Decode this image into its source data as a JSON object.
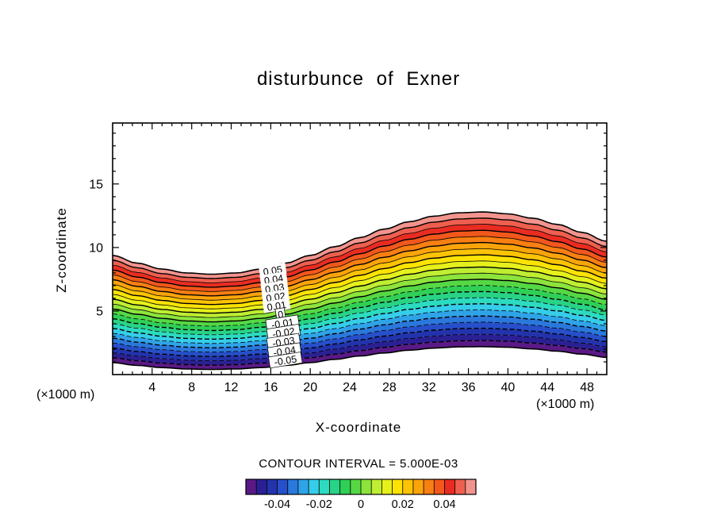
{
  "title": "disturbunce of Exner",
  "axes": {
    "xlabel": "X-coordinate",
    "ylabel": "Z-coordinate",
    "unit_left": "(×1000 m)",
    "unit_right": "(×1000 m)",
    "x_ticks": [
      4,
      8,
      12,
      16,
      20,
      24,
      28,
      32,
      36,
      40,
      44,
      48
    ],
    "y_ticks": [
      5,
      10,
      15
    ]
  },
  "footer": {
    "contour_note": "CONTOUR INTERVAL = 5.000E-03"
  },
  "chart_data": {
    "type": "filled_contour",
    "title": "disturbunce of Exner",
    "xlabel": "X-coordinate (×1000 m)",
    "ylabel": "Z-coordinate (×1000 m)",
    "x_range": [
      0,
      50
    ],
    "z_range": [
      0,
      19.8
    ],
    "contour_interval": 0.005,
    "levels": [
      0.055,
      0.05,
      0.045,
      0.04,
      0.035,
      0.03,
      0.025,
      0.02,
      0.015,
      0.01,
      0.005,
      0.0,
      -0.005,
      -0.01,
      -0.015,
      -0.02,
      -0.025,
      -0.03,
      -0.035,
      -0.04,
      -0.045,
      -0.05,
      -0.055
    ],
    "line_style": {
      "solid": "levels >= 0",
      "dashed": "levels < 0"
    },
    "top_boundary": {
      "x": [
        0,
        2.5,
        5,
        7.5,
        10,
        12.5,
        15,
        17.5,
        20,
        22.5,
        25,
        27.5,
        30,
        32.5,
        35,
        37.5,
        40,
        42.5,
        45,
        47.5,
        50
      ],
      "z": [
        9.38,
        8.77,
        8.3,
        8.0,
        7.9,
        8.0,
        8.3,
        8.77,
        9.38,
        10.07,
        10.78,
        11.45,
        12.03,
        12.47,
        12.73,
        12.8,
        12.65,
        12.31,
        11.82,
        11.19,
        10.49
      ]
    },
    "bottom_boundary": {
      "x": [
        0,
        2.5,
        5,
        7.5,
        10,
        12.5,
        15,
        17.5,
        20,
        22.5,
        25,
        27.5,
        30,
        32.5,
        35,
        37.5,
        40,
        42.5,
        45,
        47.5,
        50
      ],
      "z": [
        0.94,
        0.72,
        0.55,
        0.44,
        0.4,
        0.44,
        0.55,
        0.72,
        0.94,
        1.2,
        1.46,
        1.7,
        1.92,
        2.08,
        2.18,
        2.2,
        2.15,
        2.02,
        1.84,
        1.61,
        1.35
      ]
    },
    "band_colors_high_to_low": [
      "#f2948e",
      "#ee5f4f",
      "#e92c21",
      "#f2571b",
      "#f87f12",
      "#fba40a",
      "#fdc305",
      "#fce303",
      "#e6f01c",
      "#bfee32",
      "#8ce43c",
      "#55d844",
      "#30cf55",
      "#28d385",
      "#2cdbc0",
      "#35cde9",
      "#2fa3e8",
      "#2a78dc",
      "#264fc9",
      "#2233ab",
      "#2b2093",
      "#5a1a86"
    ],
    "contour_labels": [
      {
        "text": "0.05",
        "level": 0.05,
        "x": 16.2
      },
      {
        "text": "0.04",
        "level": 0.04,
        "x": 16.3
      },
      {
        "text": "0.03",
        "level": 0.03,
        "x": 16.4
      },
      {
        "text": "0.02",
        "level": 0.02,
        "x": 16.5
      },
      {
        "text": "0.01",
        "level": 0.01,
        "x": 16.6
      },
      {
        "text": "0",
        "level": 0.0,
        "x": 17.0
      },
      {
        "text": "-0.01",
        "level": -0.01,
        "x": 17.2
      },
      {
        "text": "-0.02",
        "level": -0.02,
        "x": 17.3
      },
      {
        "text": "-0.03",
        "level": -0.03,
        "x": 17.3
      },
      {
        "text": "-0.04",
        "level": -0.04,
        "x": 17.4
      },
      {
        "text": "-0.05",
        "level": -0.05,
        "x": 17.5
      }
    ],
    "colorbar": {
      "range": [
        -0.055,
        0.055
      ],
      "tick_labels": [
        "-0.04",
        "-0.02",
        "0",
        "0.02",
        "0.04"
      ],
      "tick_values": [
        -0.04,
        -0.02,
        0,
        0.02,
        0.04
      ]
    }
  }
}
